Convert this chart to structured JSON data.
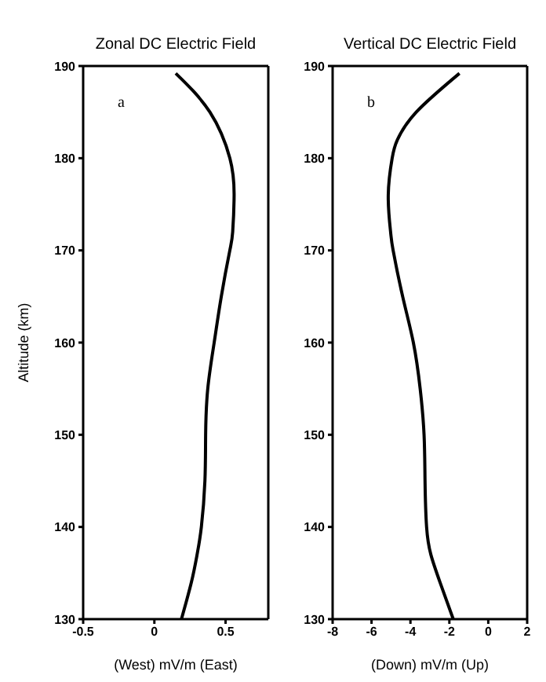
{
  "chart_data": [
    {
      "type": "line",
      "title": "Zonal DC Electric Field",
      "xlabel": "(West) mV/m (East)",
      "ylabel": "Altitude (km)",
      "xlim": [
        -0.5,
        0.8
      ],
      "xticks": [
        -0.5,
        0,
        0.5
      ],
      "ylim": [
        130,
        190
      ],
      "yticks": [
        130,
        140,
        150,
        160,
        170,
        180,
        190
      ],
      "marker": "none",
      "line_style": "solid",
      "annotations": [
        "a"
      ],
      "series": [
        {
          "color": "#000000",
          "x": [
            0.15,
            0.39,
            0.53,
            0.56,
            0.55,
            0.53,
            0.47,
            0.42,
            0.375,
            0.36,
            0.355,
            0.33,
            0.3,
            0.26,
            0.19
          ],
          "values": [
            189.2,
            185,
            180,
            176,
            172,
            170,
            165,
            160,
            155,
            150,
            145,
            140,
            137,
            134,
            130
          ]
        }
      ]
    },
    {
      "type": "line",
      "title": "Vertical DC Electric Field",
      "xlabel": "(Down) mV/m (Up)",
      "xlim": [
        -8,
        2
      ],
      "xticks": [
        -8,
        -6,
        -4,
        -2,
        0,
        2
      ],
      "ylim": [
        130,
        190
      ],
      "yticks": [
        130,
        140,
        150,
        160,
        170,
        180,
        190
      ],
      "marker": "none",
      "line_style": "solid",
      "annotations": [
        "b"
      ],
      "series": [
        {
          "color": "#000000",
          "x": [
            -1.48,
            -3.7,
            -4.67,
            -4.94,
            -5.14,
            -5.02,
            -4.89,
            -4.4,
            -3.85,
            -3.5,
            -3.3,
            -3.25,
            -3.17,
            -2.95,
            -2.48,
            -1.8
          ],
          "values": [
            189.2,
            185,
            182,
            180,
            176,
            172,
            170,
            165,
            160,
            155,
            150,
            145,
            140,
            137,
            134,
            130
          ]
        }
      ]
    }
  ]
}
